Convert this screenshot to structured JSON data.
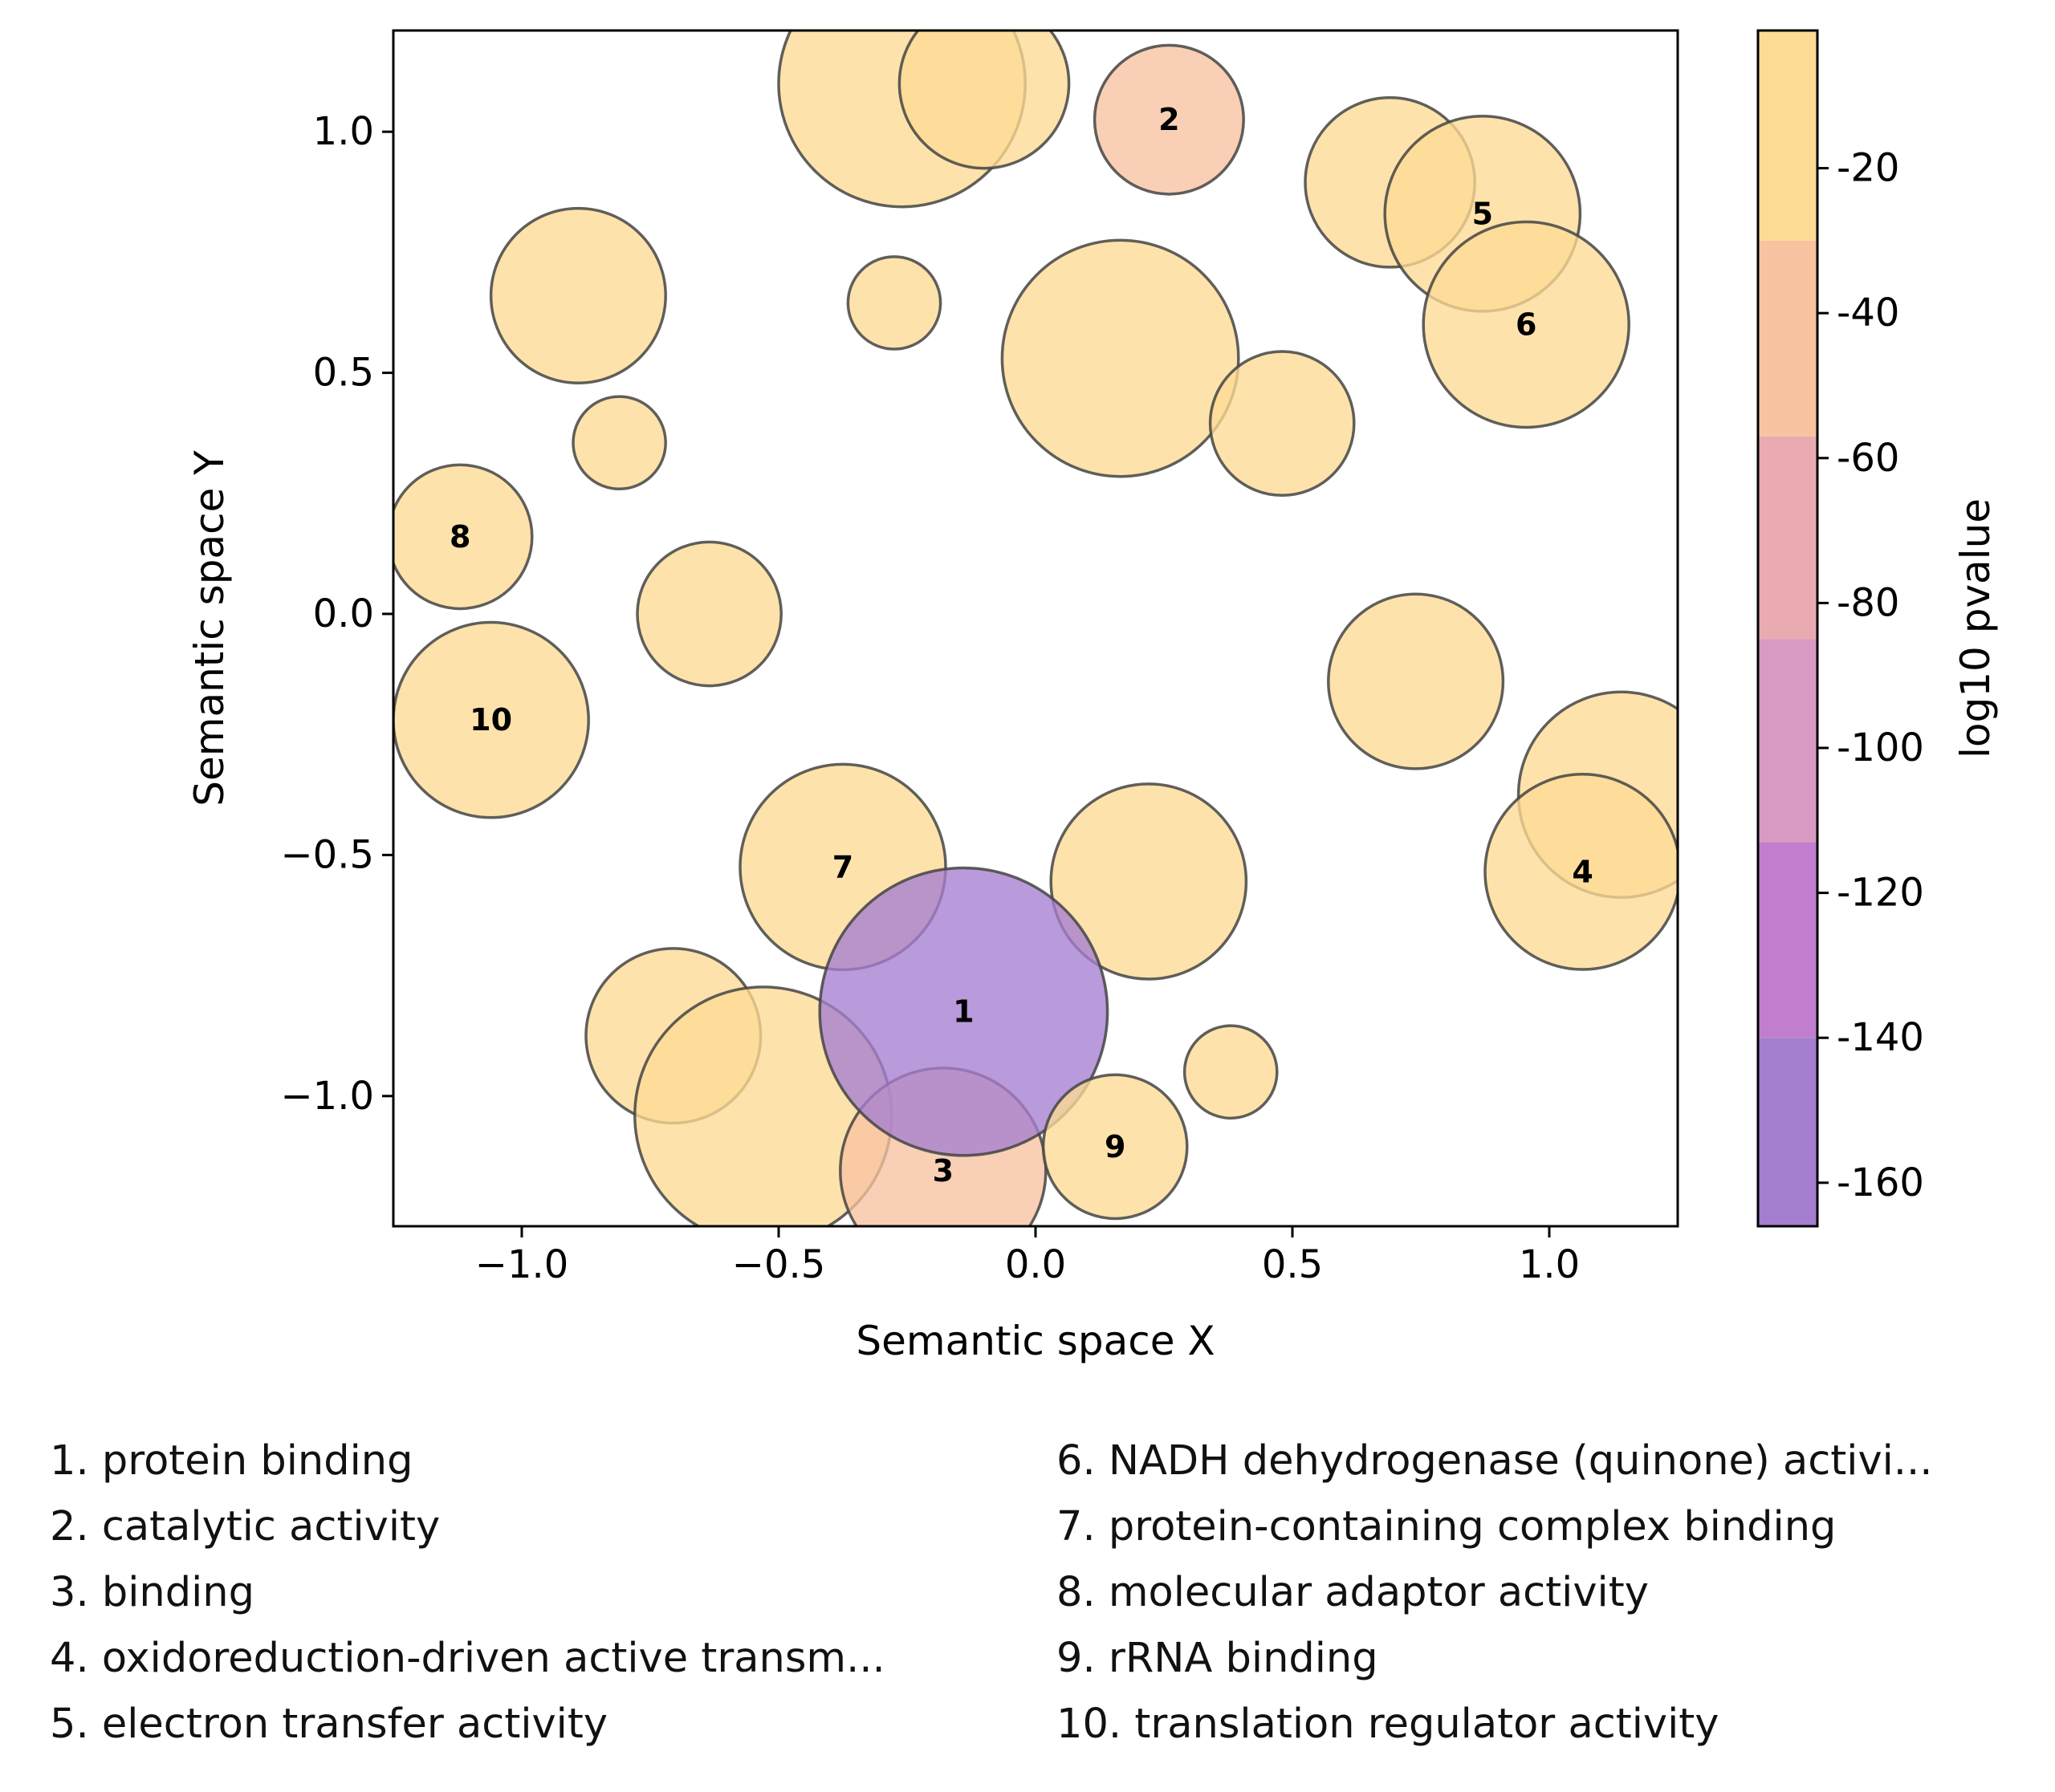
{
  "chart_data": {
    "type": "scatter",
    "subtype": "bubble",
    "xlabel": "Semantic space X",
    "ylabel": "Semantic space Y",
    "xlim": [
      -1.25,
      1.25
    ],
    "ylim": [
      -1.27,
      1.21
    ],
    "xticks": [
      {
        "value": -1.0,
        "label": "−1.0"
      },
      {
        "value": -0.5,
        "label": "−0.5"
      },
      {
        "value": 0.0,
        "label": "0.0"
      },
      {
        "value": 0.5,
        "label": "0.5"
      },
      {
        "value": 1.0,
        "label": "1.0"
      }
    ],
    "yticks": [
      {
        "value": 1.0,
        "label": "1.0"
      },
      {
        "value": 0.5,
        "label": "0.5"
      },
      {
        "value": 0.0,
        "label": "0.0"
      },
      {
        "value": -0.5,
        "label": "−0.5"
      },
      {
        "value": -1.0,
        "label": "−1.0"
      }
    ],
    "colorbar": {
      "label": "log10 pvalue",
      "range": [
        -166,
        -1
      ],
      "boundaries": [
        -166,
        -140,
        -113,
        -85,
        -57,
        -30,
        -1
      ],
      "colors": [
        "#a57ecf",
        "#c17ecf",
        "#d899c3",
        "#eaaab1",
        "#f7c3a0",
        "#fcdb94"
      ],
      "ticks": [
        {
          "value": -20,
          "label": "-20"
        },
        {
          "value": -40,
          "label": "-40"
        },
        {
          "value": -60,
          "label": "-60"
        },
        {
          "value": -80,
          "label": "-80"
        },
        {
          "value": -100,
          "label": "-100"
        },
        {
          "value": -120,
          "label": "-120"
        },
        {
          "value": -140,
          "label": "-140"
        },
        {
          "value": -160,
          "label": "-160"
        }
      ]
    },
    "points": [
      {
        "x": -0.26,
        "y": 1.1,
        "r": 0.24,
        "pvalue": -5
      },
      {
        "x": -0.1,
        "y": 1.1,
        "r": 0.165,
        "pvalue": -5
      },
      {
        "x": 0.26,
        "y": 1.025,
        "r": 0.145,
        "pvalue": -40,
        "label": "2"
      },
      {
        "x": 0.69,
        "y": 0.895,
        "r": 0.165,
        "pvalue": -5
      },
      {
        "x": 0.87,
        "y": 0.83,
        "r": 0.19,
        "pvalue": -5,
        "label": "5"
      },
      {
        "x": 0.955,
        "y": 0.6,
        "r": 0.2,
        "pvalue": -5,
        "label": "6"
      },
      {
        "x": -0.89,
        "y": 0.66,
        "r": 0.17,
        "pvalue": -5
      },
      {
        "x": -0.275,
        "y": 0.645,
        "r": 0.09,
        "pvalue": -5
      },
      {
        "x": 0.165,
        "y": 0.53,
        "r": 0.23,
        "pvalue": -5
      },
      {
        "x": 0.48,
        "y": 0.395,
        "r": 0.14,
        "pvalue": -5
      },
      {
        "x": -0.81,
        "y": 0.355,
        "r": 0.09,
        "pvalue": -5
      },
      {
        "x": -1.12,
        "y": 0.16,
        "r": 0.14,
        "pvalue": -5,
        "label": "8"
      },
      {
        "x": -0.635,
        "y": 0.0,
        "r": 0.14,
        "pvalue": -5
      },
      {
        "x": 0.74,
        "y": -0.14,
        "r": 0.17,
        "pvalue": -5
      },
      {
        "x": -1.06,
        "y": -0.22,
        "r": 0.19,
        "pvalue": -5,
        "label": "10"
      },
      {
        "x": 1.14,
        "y": -0.375,
        "r": 0.2,
        "pvalue": -5
      },
      {
        "x": 1.065,
        "y": -0.535,
        "r": 0.19,
        "pvalue": -5,
        "label": "4"
      },
      {
        "x": -0.375,
        "y": -0.525,
        "r": 0.2,
        "pvalue": -5,
        "label": "7"
      },
      {
        "x": 0.22,
        "y": -0.555,
        "r": 0.19,
        "pvalue": -5
      },
      {
        "x": -0.705,
        "y": -0.875,
        "r": 0.17,
        "pvalue": -5
      },
      {
        "x": -0.53,
        "y": -1.04,
        "r": 0.25,
        "pvalue": -5
      },
      {
        "x": -0.18,
        "y": -1.155,
        "r": 0.2,
        "pvalue": -45,
        "label": "3"
      },
      {
        "x": -0.14,
        "y": -0.825,
        "r": 0.28,
        "pvalue": -160,
        "label": "1"
      },
      {
        "x": 0.155,
        "y": -1.105,
        "r": 0.14,
        "pvalue": -5,
        "label": "9"
      },
      {
        "x": 0.38,
        "y": -0.95,
        "r": 0.09,
        "pvalue": -5
      }
    ]
  },
  "legend": {
    "column_1": [
      "1. protein binding",
      "2. catalytic activity",
      "3. binding",
      "4. oxidoreduction-driven active transm...",
      "5. electron transfer activity"
    ],
    "column_2": [
      "6. NADH dehydrogenase (quinone) activi...",
      "7. protein-containing complex binding",
      "8. molecular adaptor activity",
      "9. rRNA binding",
      "10. translation regulator activity"
    ]
  }
}
